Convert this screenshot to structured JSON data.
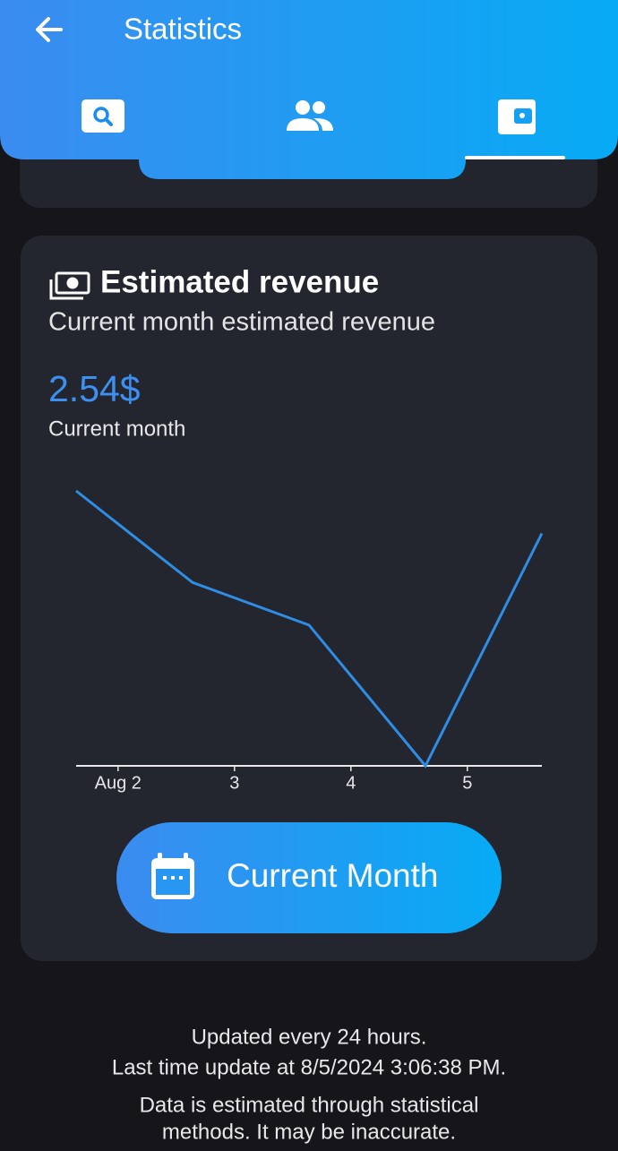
{
  "header": {
    "title": "Statistics"
  },
  "card": {
    "title": "Estimated revenue",
    "subtitle": "Current month estimated revenue",
    "total": "2.54$",
    "total_label": "Current month",
    "button": "Current Month"
  },
  "chart_data": {
    "type": "line",
    "x": [
      1.64,
      2.64,
      3.64,
      4.64,
      5.64
    ],
    "series": [
      {
        "color": "#2f8de4",
        "values": [
          0.84,
          0.56,
          0.43,
          0,
          0.71
        ]
      }
    ],
    "xlim": [
      1.64,
      5.64
    ],
    "ylim": [
      0,
      0.84
    ],
    "xticks": [
      {
        "value": 2,
        "label": "Aug 2"
      },
      3,
      4,
      5
    ]
  },
  "footer": {
    "lines": [
      "Updated every 24 hours.",
      "Last time update at 8/5/2024 3:06:38 PM.",
      "Data is estimated through statistical",
      "methods. It may be inaccurate."
    ]
  }
}
